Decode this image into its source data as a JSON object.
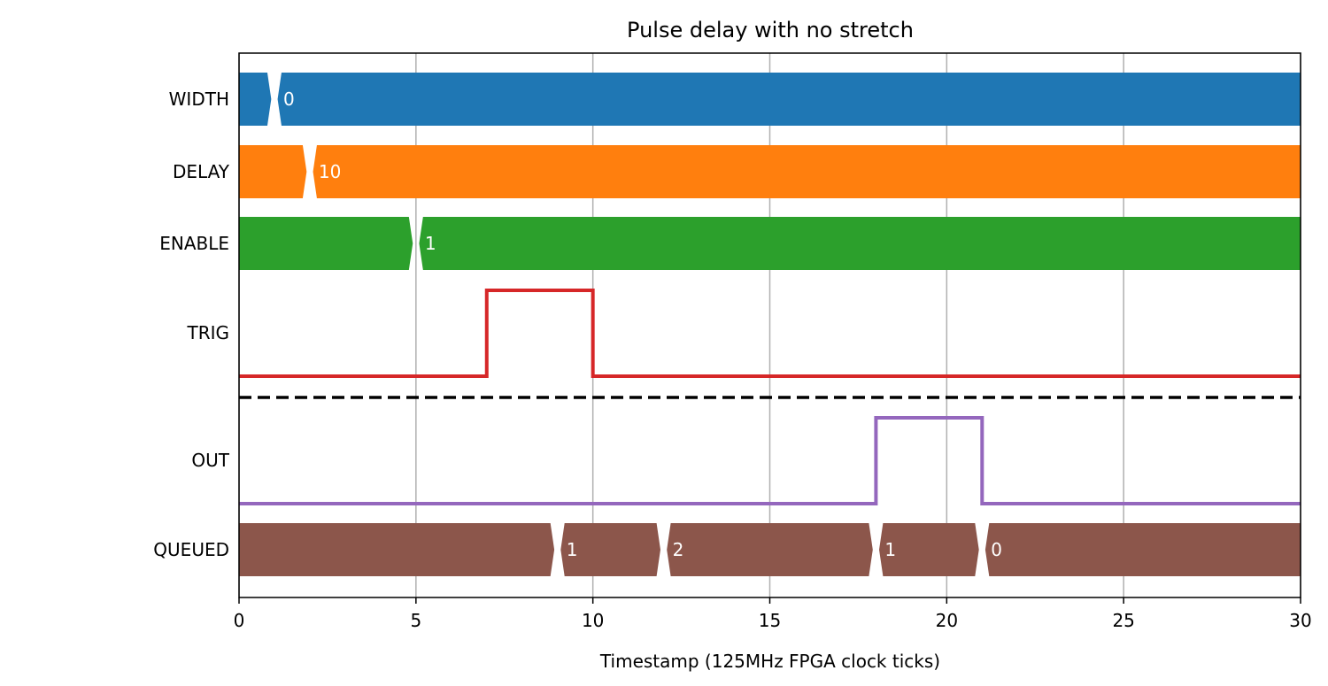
{
  "chart_data": {
    "type": "line",
    "title": "Pulse delay with no stretch",
    "xlabel": "Timestamp (125MHz FPGA clock ticks)",
    "ylabel": "",
    "xlim": [
      0,
      30
    ],
    "xticks": [
      0,
      5,
      10,
      15,
      20,
      25,
      30
    ],
    "grid": "x",
    "rows": [
      {
        "name": "WIDTH",
        "kind": "bus",
        "color": "#1f77b4",
        "transitions": [
          {
            "x": 1,
            "value": "0"
          }
        ]
      },
      {
        "name": "DELAY",
        "kind": "bus",
        "color": "#ff7f0e",
        "transitions": [
          {
            "x": 2,
            "value": "10"
          }
        ]
      },
      {
        "name": "ENABLE",
        "kind": "bus",
        "color": "#2ca02c",
        "transitions": [
          {
            "x": 5,
            "value": "1"
          }
        ]
      },
      {
        "name": "TRIG",
        "kind": "digital",
        "color": "#d62728",
        "initial": 0,
        "edges": [
          {
            "x": 7,
            "level": 1
          },
          {
            "x": 10,
            "level": 0
          }
        ]
      },
      {
        "name": "OUT",
        "kind": "digital",
        "color": "#9467bd",
        "initial": 0,
        "edges": [
          {
            "x": 18,
            "level": 1
          },
          {
            "x": 21,
            "level": 0
          }
        ]
      },
      {
        "name": "QUEUED",
        "kind": "bus",
        "color": "#8c564b",
        "transitions": [
          {
            "x": 9,
            "value": "1"
          },
          {
            "x": 12,
            "value": "2"
          },
          {
            "x": 18,
            "value": "1"
          },
          {
            "x": 21,
            "value": "0"
          }
        ]
      }
    ],
    "separator": {
      "after": "TRIG",
      "style": "dashed",
      "color": "#000000"
    }
  }
}
